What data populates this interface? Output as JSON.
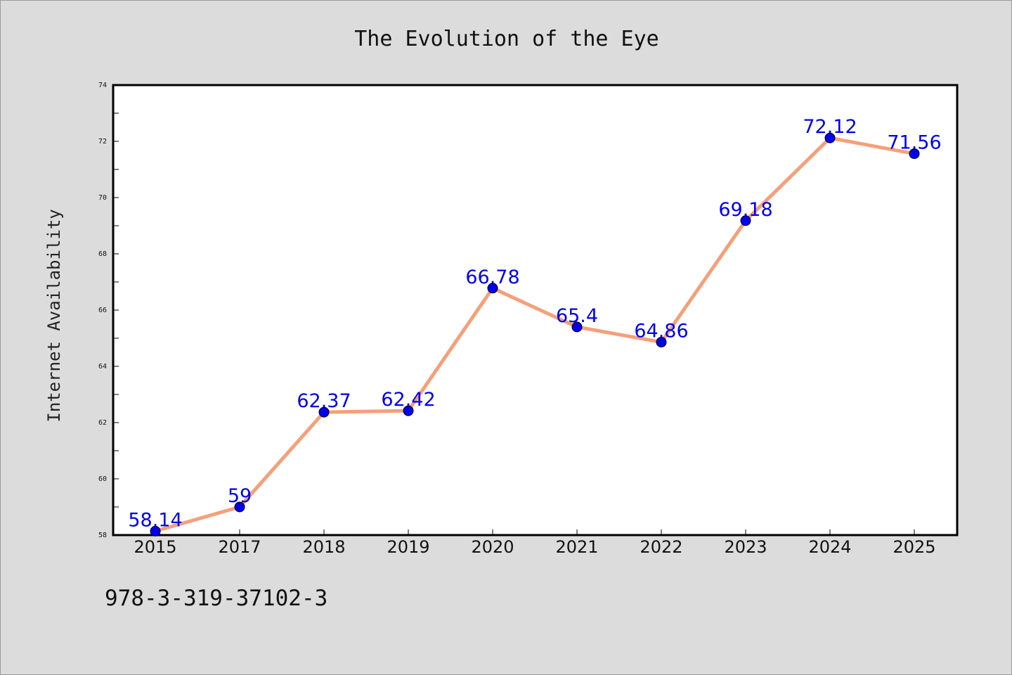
{
  "chart_data": {
    "type": "line",
    "title": "The Evolution of the Eye",
    "xlabel": "",
    "ylabel": "Internet Availability",
    "categories": [
      "2015",
      "2017",
      "2018",
      "2019",
      "2020",
      "2021",
      "2022",
      "2023",
      "2024",
      "2025"
    ],
    "series": [
      {
        "values": [
          58.14,
          59,
          62.37,
          62.42,
          66.78,
          65.4,
          64.86,
          69.18,
          72.12,
          71.56
        ],
        "data_labels": [
          "58.14",
          "59",
          "62.37",
          "62.42",
          "66.78",
          "65.4",
          "64.86",
          "69.18",
          "72.12",
          "71.56"
        ],
        "line_color": "#f4a07a",
        "marker_color": "#0000ee"
      }
    ],
    "ylim": [
      58,
      74
    ],
    "yticks": [
      58,
      60,
      62,
      64,
      66,
      68,
      70,
      72,
      74
    ],
    "ytick_labels": [
      "58",
      "60",
      "62",
      "64",
      "66",
      "68",
      "70",
      "72",
      "74"
    ],
    "grid": false,
    "legend": "none",
    "label_color": "#0000ee",
    "background_color": "#dcdcdc",
    "plot_background": "#ffffff"
  },
  "footer": {
    "isbn": "978-3-319-37102-3"
  }
}
